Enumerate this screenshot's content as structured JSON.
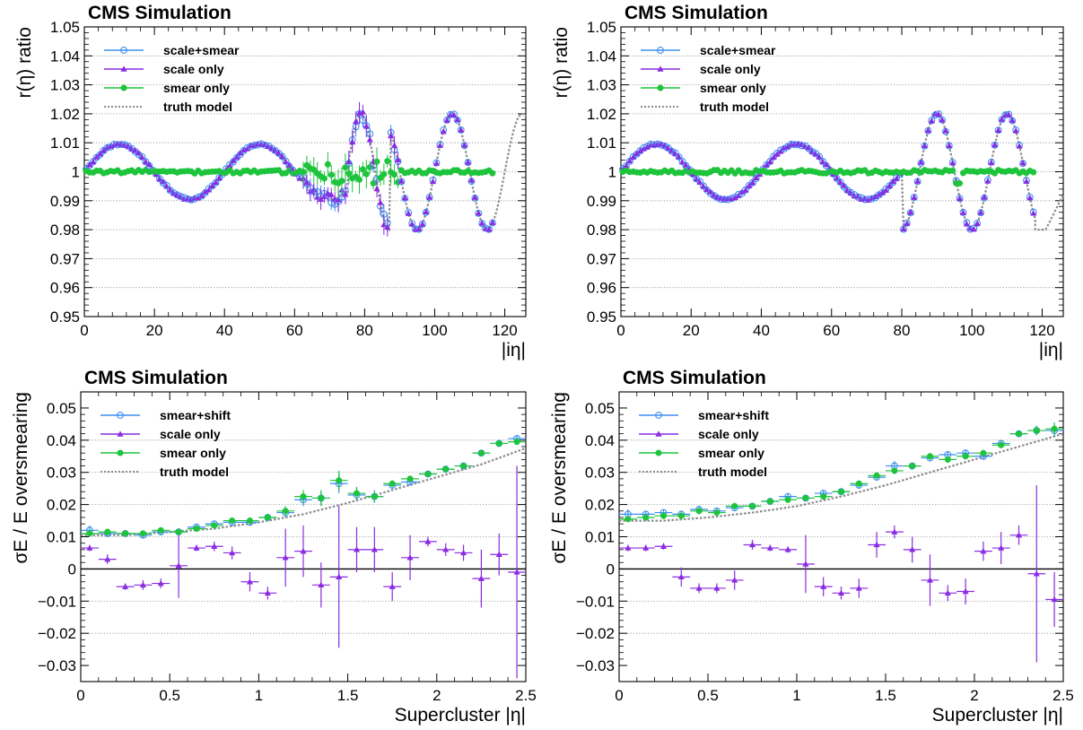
{
  "figure_title": "",
  "colors": {
    "scale_smear": "#3d8ef0",
    "scale_only": "#8a2be2",
    "smear_only": "#1ec43c",
    "truth": "#8c8c8c",
    "zero_line": "#000000",
    "grid": "#8f8f8f"
  },
  "chart_data": [
    {
      "type": "scatter",
      "panel": "top-left",
      "title": "CMS Simulation",
      "xlabel": "|iη|",
      "ylabel": "r(η) ratio",
      "xlim": [
        0,
        126
      ],
      "ylim": [
        0.95,
        1.05
      ],
      "xticks": [
        0,
        20,
        40,
        60,
        80,
        100,
        120
      ],
      "xtick_labels": [
        "0",
        "20",
        "40",
        "60",
        "80",
        "100",
        "120"
      ],
      "yticks": [
        0.95,
        0.96,
        0.97,
        0.98,
        0.99,
        1,
        1.01,
        1.02,
        1.03,
        1.04,
        1.05
      ],
      "ytick_labels": [
        "0.95",
        "0.96",
        "0.97",
        "0.98",
        "0.99",
        "1",
        "1.01",
        "1.02",
        "1.03",
        "1.04",
        "1.05"
      ],
      "grid": "horizontal",
      "legend_position": "top-left",
      "legend": [
        "scale+smear",
        "scale only",
        "smear only",
        "truth model"
      ],
      "model": "segments",
      "segments": [
        {
          "x0": 0,
          "x1": 60,
          "period": 40,
          "phase": 0,
          "amp": 0.0095
        },
        {
          "x0": 60,
          "x1": 75,
          "period": 40,
          "phase": 0,
          "amp": 0.0095
        },
        {
          "x0": 75,
          "x1": 87,
          "period": 16,
          "phase": 75,
          "amp": 0.02,
          "offset": 0.0
        },
        {
          "x0": 87,
          "x1": 126,
          "period": 20,
          "phase": 100,
          "amp": 0.02
        }
      ],
      "meas_xmax": 117,
      "noisy_region": [
        62,
        90
      ],
      "smear_dip": {
        "x": 118,
        "y": 0.995
      }
    },
    {
      "type": "scatter",
      "panel": "top-right",
      "title": "CMS Simulation",
      "xlabel": "|iη|",
      "ylabel": "r(η) ratio",
      "xlim": [
        0,
        126
      ],
      "ylim": [
        0.95,
        1.05
      ],
      "xticks": [
        0,
        20,
        40,
        60,
        80,
        100,
        120
      ],
      "xtick_labels": [
        "0",
        "20",
        "40",
        "60",
        "80",
        "100",
        "120"
      ],
      "yticks": [
        0.95,
        0.96,
        0.97,
        0.98,
        0.99,
        1,
        1.01,
        1.02,
        1.03,
        1.04,
        1.05
      ],
      "ytick_labels": [
        "0.95",
        "0.96",
        "0.97",
        "0.98",
        "0.99",
        "1",
        "1.01",
        "1.02",
        "1.03",
        "1.04",
        "1.05"
      ],
      "grid": "horizontal",
      "legend_position": "top-left",
      "legend": [
        "scale+smear",
        "scale only",
        "smear only",
        "truth model"
      ],
      "model": "segments",
      "segments": [
        {
          "x0": 0,
          "x1": 80,
          "period": 40,
          "phase": 0,
          "amp": 0.0095
        },
        {
          "x0": 80,
          "x1": 126,
          "period": 20,
          "phase": 85,
          "amp": 0.02
        }
      ],
      "meas_xmax": 118,
      "truth_tail": [
        [
          118,
          0.98
        ],
        [
          121,
          0.98
        ],
        [
          126,
          0.992
        ]
      ],
      "noisy_region": [],
      "smear_dip": {
        "x": 96,
        "y": 0.996
      }
    },
    {
      "type": "scatter",
      "panel": "bottom-left",
      "title": "CMS Simulation",
      "xlabel": "Supercluster |η|",
      "ylabel": "σE / E oversmearing",
      "xlim": [
        0,
        2.5
      ],
      "ylim": [
        -0.035,
        0.055
      ],
      "xticks": [
        0,
        0.5,
        1,
        1.5,
        2,
        2.5
      ],
      "xtick_labels": [
        "0",
        "0.5",
        "1",
        "1.5",
        "2",
        "2.5"
      ],
      "yticks": [
        -0.03,
        -0.02,
        -0.01,
        0,
        0.01,
        0.02,
        0.03,
        0.04,
        0.05
      ],
      "ytick_labels": [
        "−0.03",
        "−0.02",
        "−0.01",
        "0",
        "0.01",
        "0.02",
        "0.03",
        "0.04",
        "0.05"
      ],
      "grid": "horizontal",
      "legend_position": "top-left",
      "legend": [
        "smear+shift",
        "scale only",
        "smear only",
        "truth model"
      ],
      "bin_width": 0.1,
      "x": [
        0.05,
        0.15,
        0.25,
        0.35,
        0.45,
        0.55,
        0.65,
        0.75,
        0.85,
        0.95,
        1.05,
        1.15,
        1.25,
        1.35,
        1.45,
        1.55,
        1.65,
        1.75,
        1.85,
        1.95,
        2.05,
        2.15,
        2.25,
        2.35,
        2.45
      ],
      "series": [
        {
          "name": "smear+shift",
          "values": [
            0.012,
            0.011,
            0.011,
            0.0105,
            0.0115,
            0.0115,
            0.013,
            0.014,
            0.0145,
            0.0145,
            0.016,
            0.0175,
            0.0215,
            0.022,
            0.0265,
            0.023,
            0.0225,
            0.026,
            0.027,
            0.0295,
            0.031,
            0.032,
            0.036,
            0.039,
            0.0405
          ],
          "errors": [
            0.0015,
            0.001,
            0.001,
            0.001,
            0.001,
            0.001,
            0.001,
            0.001,
            0.001,
            0.001,
            0.001,
            0.0015,
            0.002,
            0.002,
            0.003,
            0.002,
            0.002,
            0.001,
            0.001,
            0.001,
            0.001,
            0.001,
            0.001,
            0.001,
            0.001
          ]
        },
        {
          "name": "scale only",
          "values": [
            0.0065,
            0.003,
            -0.0055,
            -0.005,
            -0.0045,
            0.001,
            0.0065,
            0.007,
            0.005,
            -0.004,
            -0.0075,
            0.0035,
            0.0055,
            -0.005,
            -0.0025,
            0.006,
            0.006,
            -0.0055,
            0.0035,
            0.0085,
            0.006,
            0.005,
            -0.003,
            0.0045,
            -0.001
          ],
          "errors": [
            0.001,
            0.0015,
            0.001,
            0.0015,
            0.0015,
            0.01,
            0.001,
            0.0015,
            0.002,
            0.003,
            0.002,
            0.009,
            0.008,
            0.007,
            0.022,
            0.007,
            0.007,
            0.0045,
            0.007,
            0.0015,
            0.002,
            0.0025,
            0.009,
            0.0065,
            0.033
          ]
        },
        {
          "name": "smear only",
          "values": [
            0.011,
            0.0115,
            0.011,
            0.011,
            0.012,
            0.0115,
            0.0125,
            0.0135,
            0.015,
            0.015,
            0.016,
            0.018,
            0.0225,
            0.022,
            0.0275,
            0.0235,
            0.0225,
            0.0265,
            0.028,
            0.0295,
            0.031,
            0.032,
            0.036,
            0.039,
            0.0395
          ],
          "errors": [
            0.001,
            0.001,
            0.001,
            0.001,
            0.001,
            0.001,
            0.001,
            0.001,
            0.001,
            0.001,
            0.001,
            0.0015,
            0.002,
            0.0025,
            0.003,
            0.002,
            0.0015,
            0.001,
            0.001,
            0.001,
            0.001,
            0.001,
            0.001,
            0.001,
            0.001
          ]
        }
      ],
      "truth_model": {
        "x": [
          0,
          0.25,
          0.5,
          0.75,
          1.0,
          1.25,
          1.5,
          1.75,
          2.0,
          2.25,
          2.5
        ],
        "y": [
          0.0105,
          0.0105,
          0.0115,
          0.0125,
          0.0145,
          0.017,
          0.0205,
          0.0245,
          0.0285,
          0.0325,
          0.0375
        ]
      }
    },
    {
      "type": "scatter",
      "panel": "bottom-right",
      "title": "CMS Simulation",
      "xlabel": "Supercluster |η|",
      "ylabel": "σE / E oversmearing",
      "xlim": [
        0,
        2.5
      ],
      "ylim": [
        -0.035,
        0.055
      ],
      "xticks": [
        0,
        0.5,
        1,
        1.5,
        2,
        2.5
      ],
      "xtick_labels": [
        "0",
        "0.5",
        "1",
        "1.5",
        "2",
        "2.5"
      ],
      "yticks": [
        -0.03,
        -0.02,
        -0.01,
        0,
        0.01,
        0.02,
        0.03,
        0.04,
        0.05
      ],
      "ytick_labels": [
        "−0.03",
        "−0.02",
        "−0.01",
        "0",
        "0.01",
        "0.02",
        "0.03",
        "0.04",
        "0.05"
      ],
      "grid": "horizontal",
      "legend_position": "top-left",
      "legend": [
        "smear+shift",
        "scale only",
        "smear only",
        "truth model"
      ],
      "bin_width": 0.1,
      "x": [
        0.05,
        0.15,
        0.25,
        0.35,
        0.45,
        0.55,
        0.65,
        0.75,
        0.85,
        0.95,
        1.05,
        1.15,
        1.25,
        1.35,
        1.45,
        1.55,
        1.65,
        1.75,
        1.85,
        1.95,
        2.05,
        2.15,
        2.25,
        2.35,
        2.45
      ],
      "series": [
        {
          "name": "smear+shift",
          "values": [
            0.017,
            0.017,
            0.0175,
            0.017,
            0.0185,
            0.018,
            0.019,
            0.0195,
            0.021,
            0.0225,
            0.022,
            0.0235,
            0.024,
            0.026,
            0.0285,
            0.032,
            0.032,
            0.0345,
            0.0355,
            0.036,
            0.035,
            0.039,
            0.042,
            0.043,
            0.043
          ],
          "errors": [
            0.0015,
            0.001,
            0.001,
            0.001,
            0.001,
            0.001,
            0.001,
            0.001,
            0.001,
            0.001,
            0.001,
            0.001,
            0.001,
            0.001,
            0.001,
            0.0015,
            0.001,
            0.001,
            0.001,
            0.001,
            0.001,
            0.001,
            0.001,
            0.0015,
            0.002
          ]
        },
        {
          "name": "scale only",
          "values": [
            0.0065,
            0.0065,
            0.007,
            -0.0025,
            -0.006,
            -0.006,
            -0.0035,
            0.0075,
            0.0065,
            0.006,
            0.0015,
            -0.0055,
            -0.0075,
            -0.006,
            0.0075,
            0.0115,
            0.006,
            -0.0035,
            -0.0075,
            -0.007,
            0.0055,
            0.0065,
            0.0105,
            -0.0015,
            -0.0095
          ],
          "errors": [
            0.001,
            0.001,
            0.001,
            0.003,
            0.0015,
            0.0015,
            0.003,
            0.0015,
            0.001,
            0.001,
            0.009,
            0.003,
            0.002,
            0.003,
            0.004,
            0.002,
            0.004,
            0.008,
            0.0025,
            0.004,
            0.003,
            0.005,
            0.003,
            0.0275,
            0.0085
          ]
        },
        {
          "name": "smear only",
          "values": [
            0.0155,
            0.016,
            0.0165,
            0.0165,
            0.018,
            0.0175,
            0.0195,
            0.0195,
            0.021,
            0.0215,
            0.022,
            0.0225,
            0.024,
            0.0265,
            0.029,
            0.0305,
            0.032,
            0.035,
            0.034,
            0.035,
            0.036,
            0.0385,
            0.042,
            0.043,
            0.0435
          ],
          "errors": [
            0.001,
            0.001,
            0.001,
            0.001,
            0.001,
            0.001,
            0.001,
            0.001,
            0.001,
            0.001,
            0.001,
            0.001,
            0.001,
            0.001,
            0.001,
            0.001,
            0.001,
            0.001,
            0.001,
            0.001,
            0.001,
            0.001,
            0.001,
            0.0015,
            0.002
          ]
        }
      ],
      "truth_model": {
        "x": [
          0,
          0.25,
          0.5,
          0.75,
          1.0,
          1.25,
          1.5,
          1.75,
          2.0,
          2.25,
          2.5
        ],
        "y": [
          0.015,
          0.015,
          0.016,
          0.0175,
          0.0195,
          0.0225,
          0.026,
          0.03,
          0.034,
          0.038,
          0.042
        ]
      }
    }
  ]
}
